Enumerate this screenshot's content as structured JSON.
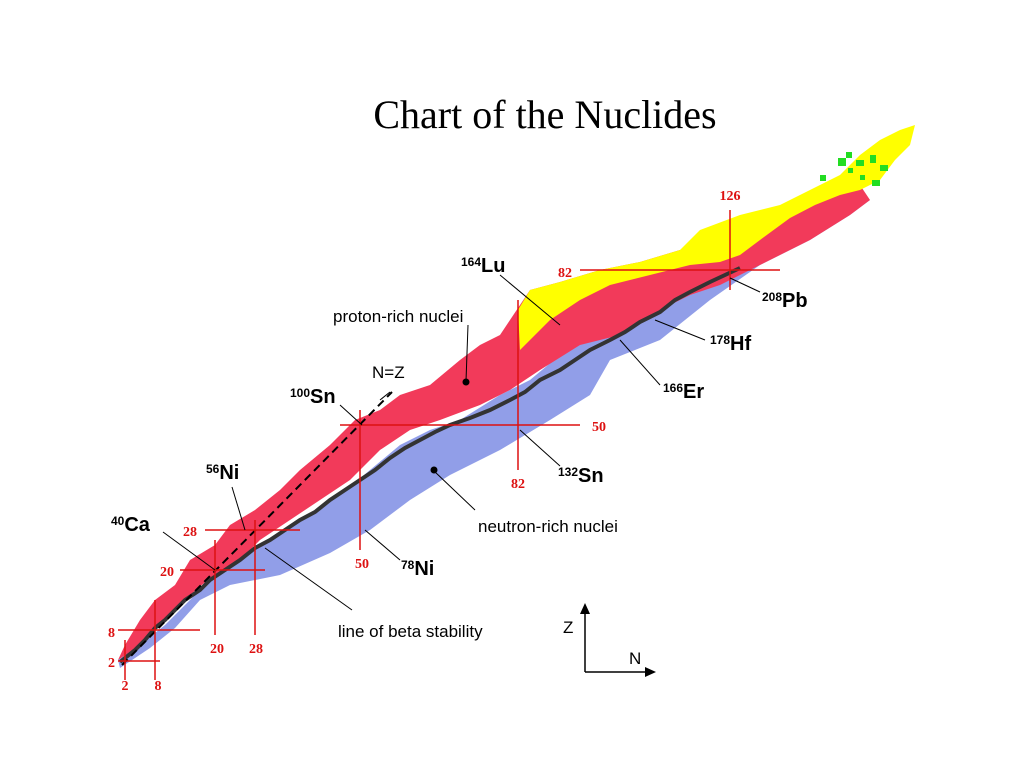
{
  "title": "Chart of the Nuclides",
  "colors": {
    "proton_rich": "#f23a5a",
    "neutron_rich": "#919ee8",
    "stable": "#333333",
    "yellow": "#ffff00",
    "green": "#22dd22",
    "magic_line": "#dd1111"
  },
  "regions": {
    "proton_rich": "proton-rich nuclei",
    "neutron_rich": "neutron-rich nuclei",
    "stability": "line of beta stability",
    "nz": "N=Z"
  },
  "isotopes": [
    {
      "mass": "164",
      "symbol": "Lu"
    },
    {
      "mass": "208",
      "symbol": "Pb"
    },
    {
      "mass": "178",
      "symbol": "Hf"
    },
    {
      "mass": "166",
      "symbol": "Er"
    },
    {
      "mass": "100",
      "symbol": "Sn"
    },
    {
      "mass": "132",
      "symbol": "Sn"
    },
    {
      "mass": "56",
      "symbol": "Ni"
    },
    {
      "mass": "40",
      "symbol": "Ca"
    },
    {
      "mass": "78",
      "symbol": "Ni"
    }
  ],
  "magic": {
    "z": [
      "2",
      "8",
      "20",
      "28",
      "50",
      "82"
    ],
    "n": [
      "2",
      "8",
      "20",
      "28",
      "50",
      "82",
      "126"
    ]
  },
  "axes": {
    "z": "Z",
    "n": "N"
  }
}
